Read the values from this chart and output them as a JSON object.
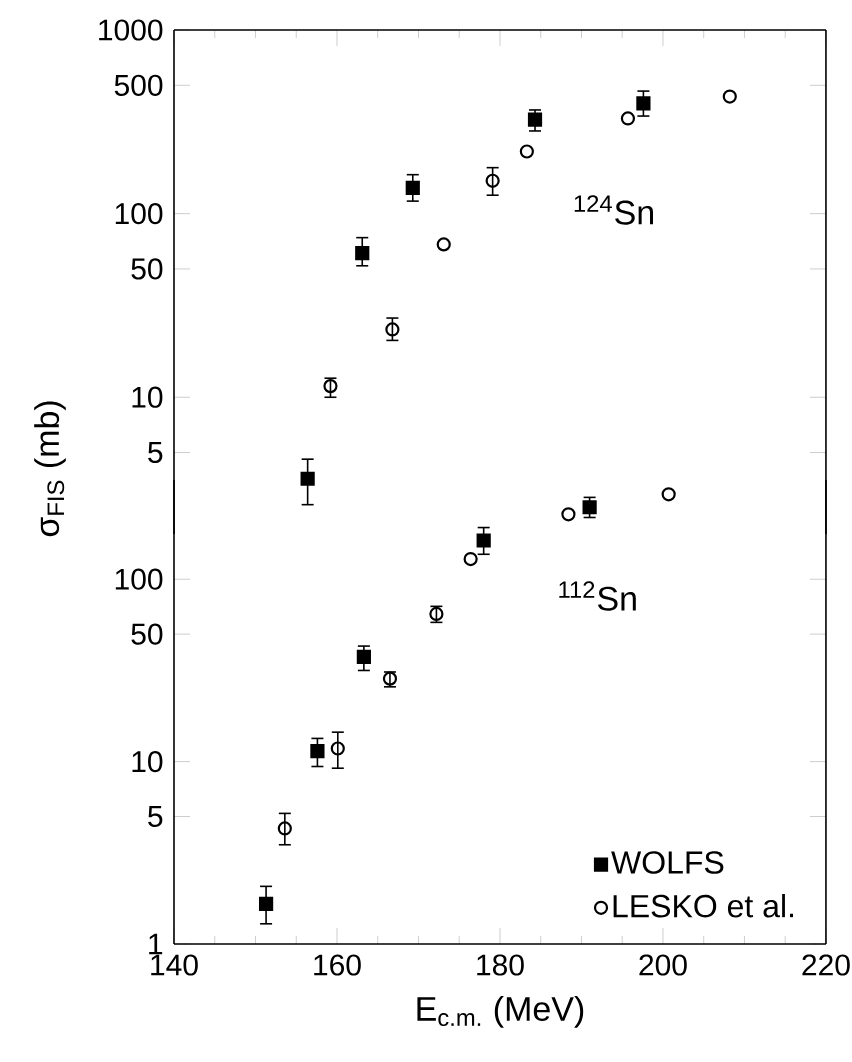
{
  "chart_data": [
    {
      "type": "scatter",
      "xlim": [
        140,
        220
      ],
      "xticks": [
        140,
        160,
        180,
        200,
        220
      ],
      "ylim": [
        1.8,
        1000
      ],
      "yticks": [
        5,
        10,
        50,
        100,
        500,
        1000
      ],
      "log": true,
      "ylabel": "σ$_{FIS}$ (mb)",
      "tick_labels": "y",
      "annotations": [
        "$^{124}$Sn"
      ],
      "series": [
        {
          "color": "#000000",
          "marker": "square",
          "x": [
            156.4,
            163.1,
            169.3,
            184.3,
            197.6
          ],
          "values": [
            3.6,
            61,
            138,
            325,
            399
          ],
          "errors": [
            [
              2.6,
              4.6
            ],
            [
              52,
              74
            ],
            [
              117,
              163
            ],
            [
              282,
              367
            ],
            [
              340,
              465
            ]
          ]
        },
        {
          "color": "#000000",
          "marker": "circle",
          "x": [
            159.2,
            166.8,
            173.1,
            179.1,
            183.3,
            195.7,
            208.2
          ],
          "values": [
            11.5,
            23.4,
            68,
            151,
            218,
            330,
            434
          ],
          "errors": [
            [
              10,
              12.7
            ],
            [
              20.4,
              27
            ],
            null,
            [
              126,
              178
            ],
            null,
            null,
            null
          ]
        }
      ]
    },
    {
      "type": "scatter",
      "xlim": [
        140,
        220
      ],
      "xticks": [
        140,
        160,
        180,
        200,
        220
      ],
      "ylim": [
        1,
        350
      ],
      "yticks": [
        1,
        5,
        10,
        50,
        100
      ],
      "log": true,
      "xlabel": "E$_{c.m.}$ (MeV)",
      "legend": "bottom right",
      "annotations": [
        "$^{112}$Sn"
      ],
      "series": [
        {
          "name": "WOLFS",
          "color": "#000000",
          "marker": "square",
          "x": [
            151.3,
            157.6,
            163.3,
            178,
            191.0
          ],
          "values": [
            1.66,
            11.4,
            37.5,
            163,
            248
          ],
          "errors": [
            [
              1.29,
              2.07
            ],
            [
              9.4,
              13.4
            ],
            [
              31.6,
              43
            ],
            [
              137,
              192
            ],
            [
              218,
              281
            ]
          ]
        },
        {
          "name": "LESKO et al.",
          "color": "#000000",
          "marker": "circle",
          "x": [
            153.6,
            160.1,
            166.5,
            172.2,
            176.4,
            188.4,
            200.7
          ],
          "values": [
            4.3,
            11.8,
            28.5,
            64.5,
            129,
            227,
            292
          ],
          "errors": [
            [
              3.5,
              5.2
            ],
            [
              9.2,
              14.5
            ],
            [
              25.7,
              31
            ],
            [
              58,
              71
            ],
            null,
            null,
            null
          ]
        }
      ]
    }
  ]
}
